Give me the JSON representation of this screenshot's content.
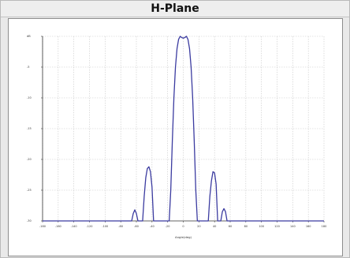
{
  "panel": {
    "title": "H-Plane"
  },
  "chart_data": {
    "type": "line",
    "title": "H-Plane",
    "xlabel": "Angle(deg)",
    "ylabel": "",
    "xlim": [
      -180,
      180
    ],
    "ylim": [
      -30,
      0
    ],
    "x_ticks": [
      -180,
      -160,
      -140,
      -120,
      -100,
      -80,
      -60,
      -40,
      -20,
      0,
      20,
      40,
      60,
      80,
      100,
      120,
      140,
      160,
      180
    ],
    "y_ticks": [
      0,
      -5,
      -10,
      -15,
      -20,
      -25,
      -30
    ],
    "y_tick_labels": [
      "dB",
      "-5",
      "-10",
      "-15",
      "-20",
      "-25",
      "-30"
    ],
    "grid": true,
    "line_color": "#3b3ba0",
    "series": [
      {
        "x": [
          -180,
          -66,
          -64,
          -62,
          -60,
          -58,
          -56,
          -52,
          -50,
          -48,
          -46,
          -44,
          -42,
          -40,
          -38,
          -36,
          -34,
          -32,
          -30,
          -28,
          -26,
          -24,
          -22,
          -20,
          -18,
          -16,
          -14,
          -12,
          -10,
          -8,
          -6,
          -4,
          -2,
          0,
          2,
          4,
          6,
          8,
          10,
          12,
          14,
          16,
          18,
          20,
          22,
          24,
          26,
          28,
          30,
          32,
          34,
          36,
          38,
          40,
          42,
          44,
          46,
          48,
          50,
          52,
          54,
          56,
          58,
          60,
          62,
          180
        ],
        "y": [
          -30,
          -30,
          -28.8,
          -28.2,
          -28.8,
          -30,
          -30,
          -30,
          -26,
          -23,
          -21.5,
          -21.2,
          -22,
          -24.5,
          -30,
          -30,
          -30,
          -30,
          -30,
          -30,
          -30,
          -30,
          -30,
          -30,
          -30,
          -25,
          -17,
          -10,
          -5,
          -2,
          -0.5,
          0,
          -0.2,
          -0.3,
          -0.2,
          0,
          -0.5,
          -2,
          -5,
          -10,
          -17,
          -25,
          -30,
          -30,
          -30,
          -30,
          -30,
          -30,
          -30,
          -30,
          -26,
          -23.5,
          -22,
          -22.2,
          -24,
          -30,
          -30,
          -30,
          -28.5,
          -28,
          -28.5,
          -30,
          -30,
          -30,
          -30,
          -30
        ]
      }
    ]
  }
}
